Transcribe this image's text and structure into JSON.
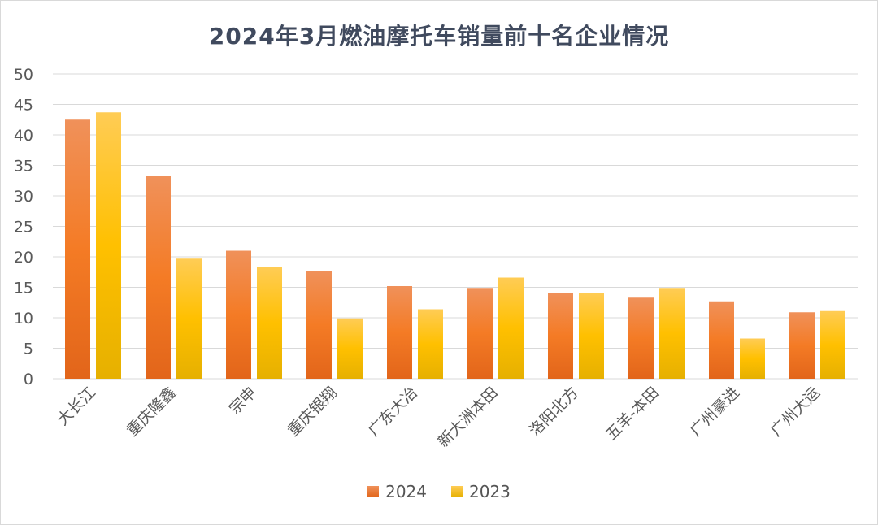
{
  "chart_data": {
    "type": "bar",
    "title": "2024年3月燃油摩托车销量前十名企业情况",
    "categories": [
      "大长江",
      "重庆隆鑫",
      "宗申",
      "重庆银翔",
      "广东大冶",
      "新大洲本田",
      "洛阳北方",
      "五羊-本田",
      "广州豪进",
      "广州大运"
    ],
    "series": [
      {
        "name": "2024",
        "color": "#f47b25",
        "values": [
          42.5,
          33.2,
          21.0,
          17.6,
          15.2,
          14.9,
          14.1,
          13.3,
          12.7,
          10.9
        ]
      },
      {
        "name": "2023",
        "color": "#ffc000",
        "values": [
          43.7,
          19.7,
          18.3,
          9.9,
          11.4,
          16.6,
          14.1,
          14.9,
          6.6,
          11.1
        ]
      }
    ],
    "ylim": [
      0,
      50
    ],
    "yticks": [
      0,
      5,
      10,
      15,
      20,
      25,
      30,
      35,
      40,
      45,
      50
    ],
    "xlabel": "",
    "ylabel": "",
    "grid": true,
    "legend": "bottom"
  }
}
